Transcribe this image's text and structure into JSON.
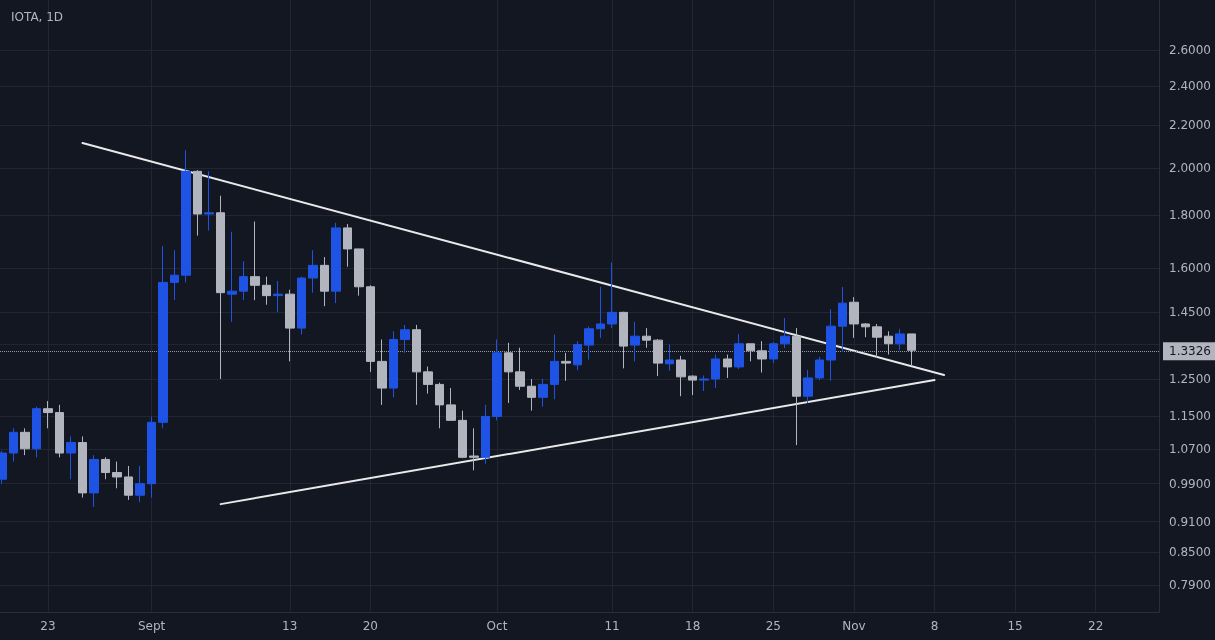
{
  "chart_data": {
    "type": "candlestick",
    "title": "IOTA, 1D",
    "x": [
      "--08-19",
      "--08-20",
      "--08-21",
      "--08-22",
      "--08-23",
      "--08-24",
      "--08-25",
      "--08-26",
      "--08-27",
      "--08-28",
      "--08-29",
      "--08-30",
      "--08-31",
      "--09-01",
      "--09-02",
      "--09-03",
      "--09-04",
      "--09-05",
      "--09-06",
      "--09-07",
      "--09-08",
      "--09-09",
      "--09-10",
      "--09-11",
      "--09-12",
      "--09-13",
      "--09-14",
      "--09-15",
      "--09-16",
      "--09-17",
      "--09-18",
      "--09-19",
      "--09-20",
      "--09-21",
      "--09-22",
      "--09-23",
      "--09-24",
      "--09-25",
      "--09-26",
      "--09-27",
      "--09-28",
      "--09-29",
      "--09-30",
      "--10-01",
      "--10-02",
      "--10-03",
      "--10-04",
      "--10-05",
      "--10-06",
      "--10-07",
      "--10-08",
      "--10-09",
      "--10-10",
      "--10-11",
      "--10-12",
      "--10-13",
      "--10-14",
      "--10-15",
      "--10-16",
      "--10-17",
      "--10-18",
      "--10-19",
      "--10-20",
      "--10-21",
      "--10-22",
      "--10-23",
      "--10-24",
      "--10-25",
      "--10-26",
      "--10-27",
      "--10-28",
      "--10-29",
      "--10-30",
      "--10-31",
      "--11-01",
      "--11-02",
      "--11-03",
      "--11-04",
      "--11-05",
      "--11-06"
    ],
    "ohlc": [
      [
        1.0,
        1.065,
        0.99,
        1.06
      ],
      [
        1.06,
        1.12,
        1.04,
        1.11
      ],
      [
        1.11,
        1.12,
        1.055,
        1.07
      ],
      [
        1.07,
        1.175,
        1.05,
        1.17
      ],
      [
        1.17,
        1.19,
        1.12,
        1.16
      ],
      [
        1.16,
        1.18,
        1.05,
        1.06
      ],
      [
        1.06,
        1.1,
        1.0,
        1.085
      ],
      [
        1.085,
        1.1,
        0.96,
        0.97
      ],
      [
        0.97,
        1.055,
        0.94,
        1.045
      ],
      [
        1.045,
        1.05,
        1.0,
        1.015
      ],
      [
        1.015,
        1.04,
        0.98,
        1.005
      ],
      [
        1.005,
        1.03,
        0.955,
        0.965
      ],
      [
        0.965,
        1.03,
        0.95,
        0.99
      ],
      [
        0.99,
        1.15,
        0.96,
        1.135
      ],
      [
        1.135,
        1.68,
        1.12,
        1.55
      ],
      [
        1.55,
        1.665,
        1.49,
        1.575
      ],
      [
        1.575,
        2.08,
        1.55,
        1.985
      ],
      [
        1.985,
        1.99,
        1.72,
        1.805
      ],
      [
        1.805,
        1.985,
        1.74,
        1.81
      ],
      [
        1.81,
        1.88,
        1.25,
        1.515
      ],
      [
        1.51,
        1.735,
        1.42,
        1.52
      ],
      [
        1.52,
        1.625,
        1.49,
        1.57
      ],
      [
        1.57,
        1.775,
        1.49,
        1.54
      ],
      [
        1.54,
        1.57,
        1.475,
        1.505
      ],
      [
        1.505,
        1.555,
        1.45,
        1.51
      ],
      [
        1.51,
        1.525,
        1.3,
        1.4
      ],
      [
        1.4,
        1.57,
        1.38,
        1.565
      ],
      [
        1.565,
        1.665,
        1.515,
        1.61
      ],
      [
        1.61,
        1.64,
        1.47,
        1.52
      ],
      [
        1.52,
        1.77,
        1.48,
        1.75
      ],
      [
        1.75,
        1.765,
        1.605,
        1.67
      ],
      [
        1.67,
        1.67,
        1.505,
        1.535
      ],
      [
        1.535,
        1.54,
        1.27,
        1.3
      ],
      [
        1.3,
        1.365,
        1.18,
        1.225
      ],
      [
        1.225,
        1.39,
        1.2,
        1.365
      ],
      [
        1.365,
        1.41,
        1.325,
        1.395
      ],
      [
        1.395,
        1.41,
        1.18,
        1.27
      ],
      [
        1.27,
        1.285,
        1.21,
        1.235
      ],
      [
        1.235,
        1.24,
        1.12,
        1.18
      ],
      [
        1.18,
        1.225,
        1.14,
        1.14
      ],
      [
        1.14,
        1.165,
        1.048,
        1.05
      ],
      [
        1.053,
        1.12,
        1.02,
        1.05
      ],
      [
        1.05,
        1.18,
        1.035,
        1.15
      ],
      [
        1.15,
        1.365,
        1.14,
        1.325
      ],
      [
        1.325,
        1.355,
        1.185,
        1.27
      ],
      [
        1.27,
        1.34,
        1.22,
        1.23
      ],
      [
        1.23,
        1.25,
        1.165,
        1.2
      ],
      [
        1.2,
        1.25,
        1.175,
        1.235
      ],
      [
        1.235,
        1.38,
        1.195,
        1.3
      ],
      [
        1.3,
        1.325,
        1.245,
        1.295
      ],
      [
        1.29,
        1.36,
        1.275,
        1.35
      ],
      [
        1.348,
        1.405,
        1.305,
        1.398
      ],
      [
        1.398,
        1.535,
        1.37,
        1.413
      ],
      [
        1.413,
        1.62,
        1.4,
        1.45
      ],
      [
        1.45,
        1.452,
        1.28,
        1.345
      ],
      [
        1.348,
        1.42,
        1.3,
        1.375
      ],
      [
        1.375,
        1.4,
        1.34,
        1.363
      ],
      [
        1.363,
        1.366,
        1.258,
        1.295
      ],
      [
        1.293,
        1.35,
        1.273,
        1.304
      ],
      [
        1.304,
        1.316,
        1.203,
        1.256
      ],
      [
        1.258,
        1.26,
        1.206,
        1.247
      ],
      [
        1.247,
        1.26,
        1.217,
        1.25
      ],
      [
        1.25,
        1.32,
        1.225,
        1.307
      ],
      [
        1.307,
        1.32,
        1.253,
        1.284
      ],
      [
        1.284,
        1.382,
        1.278,
        1.352
      ],
      [
        1.352,
        1.352,
        1.3,
        1.331
      ],
      [
        1.331,
        1.36,
        1.268,
        1.307
      ],
      [
        1.307,
        1.357,
        1.295,
        1.352
      ],
      [
        1.352,
        1.432,
        1.339,
        1.375
      ],
      [
        1.375,
        1.4,
        1.079,
        1.203
      ],
      [
        1.203,
        1.276,
        1.185,
        1.253
      ],
      [
        1.253,
        1.313,
        1.247,
        1.304
      ],
      [
        1.304,
        1.46,
        1.245,
        1.406
      ],
      [
        1.406,
        1.534,
        1.327,
        1.48
      ],
      [
        1.483,
        1.5,
        1.37,
        1.413
      ],
      [
        1.413,
        1.416,
        1.372,
        1.404
      ],
      [
        1.404,
        1.413,
        1.31,
        1.372
      ],
      [
        1.375,
        1.39,
        1.32,
        1.352
      ],
      [
        1.352,
        1.398,
        1.333,
        1.382
      ],
      [
        1.382,
        1.382,
        1.287,
        1.3326
      ]
    ],
    "colors": [
      "#1e53e5",
      "#1e53e5",
      "#b2b5be",
      "#1e53e5",
      "#b2b5be",
      "#b2b5be",
      "#1e53e5",
      "#b2b5be",
      "#1e53e5",
      "#b2b5be",
      "#b2b5be",
      "#b2b5be",
      "#1e53e5",
      "#1e53e5",
      "#1e53e5",
      "#1e53e5",
      "#1e53e5",
      "#b2b5be",
      "#1e53e5",
      "#b2b5be",
      "#1e53e5",
      "#1e53e5",
      "#b2b5be",
      "#b2b5be",
      "#1e53e5",
      "#b2b5be",
      "#1e53e5",
      "#1e53e5",
      "#b2b5be",
      "#1e53e5",
      "#b2b5be",
      "#b2b5be",
      "#b2b5be",
      "#b2b5be",
      "#1e53e5",
      "#1e53e5",
      "#b2b5be",
      "#b2b5be",
      "#b2b5be",
      "#b2b5be",
      "#b2b5be",
      "#b2b5be",
      "#1e53e5",
      "#1e53e5",
      "#b2b5be",
      "#b2b5be",
      "#b2b5be",
      "#1e53e5",
      "#1e53e5",
      "#b2b5be",
      "#1e53e5",
      "#1e53e5",
      "#1e53e5",
      "#1e53e5",
      "#b2b5be",
      "#1e53e5",
      "#b2b5be",
      "#b2b5be",
      "#1e53e5",
      "#b2b5be",
      "#b2b5be",
      "#1e53e5",
      "#1e53e5",
      "#b2b5be",
      "#1e53e5",
      "#b2b5be",
      "#b2b5be",
      "#1e53e5",
      "#1e53e5",
      "#b2b5be",
      "#1e53e5",
      "#1e53e5",
      "#1e53e5",
      "#1e53e5",
      "#b2b5be",
      "#b2b5be",
      "#b2b5be",
      "#b2b5be",
      "#1e53e5",
      "#b2b5be"
    ],
    "series": [
      {
        "type": "line",
        "x": [
          "--08-26",
          "--11-08T20:00"
        ],
        "values": [
          2.114,
          1.261
        ],
        "color": "#e9e9ea"
      },
      {
        "type": "line",
        "x": [
          "--09-07",
          "--11-08"
        ],
        "values": [
          0.946,
          1.247
        ],
        "color": "#e9e9ea"
      }
    ],
    "marker": "none",
    "log": true,
    "ylim": [
      0.744,
      2.907
    ],
    "yticks": [
      {
        "value": 0.79,
        "label": "0.7900"
      },
      {
        "value": 0.85,
        "label": "0.8500"
      },
      {
        "value": 0.91,
        "label": "0.9100"
      },
      {
        "value": 0.99,
        "label": "0.9900"
      },
      {
        "value": 1.07,
        "label": "1.0700"
      },
      {
        "value": 1.15,
        "label": "1.1500"
      },
      {
        "value": 1.25,
        "label": "1.2500"
      },
      {
        "value": 1.35,
        "label": null
      },
      {
        "value": 1.45,
        "label": "1.4500"
      },
      {
        "value": 1.6,
        "label": "1.6000"
      },
      {
        "value": 1.8,
        "label": "1.8000"
      },
      {
        "value": 2.0,
        "label": "2.0000"
      },
      {
        "value": 2.2,
        "label": "2.2000"
      },
      {
        "value": 2.4,
        "label": "2.4000"
      },
      {
        "value": 2.6,
        "label": "2.6000"
      }
    ],
    "xlim": [
      "--08-18T20:00",
      "--11-27T12:00"
    ],
    "xticks": [
      {
        "value": "--08-23",
        "label": "23"
      },
      {
        "value": "--09-01",
        "label": "Sept"
      },
      {
        "value": "--09-13",
        "label": "13"
      },
      {
        "value": "--09-20",
        "label": "20"
      },
      {
        "value": "--10-01",
        "label": "Oct"
      },
      {
        "value": "--10-11",
        "label": "11"
      },
      {
        "value": "--10-18",
        "label": "18"
      },
      {
        "value": "--10-25",
        "label": "25"
      },
      {
        "value": "--11-01",
        "label": "Nov"
      },
      {
        "value": "--11-08",
        "label": "8"
      },
      {
        "value": "--11-15",
        "label": "15"
      },
      {
        "value": "--11-22",
        "label": "22"
      }
    ],
    "grid": true,
    "ref_lines": [
      {
        "axis": "y",
        "value": 1.3326,
        "label": "1.3326",
        "line_style": "dotted",
        "color": "#9598a1"
      }
    ]
  }
}
